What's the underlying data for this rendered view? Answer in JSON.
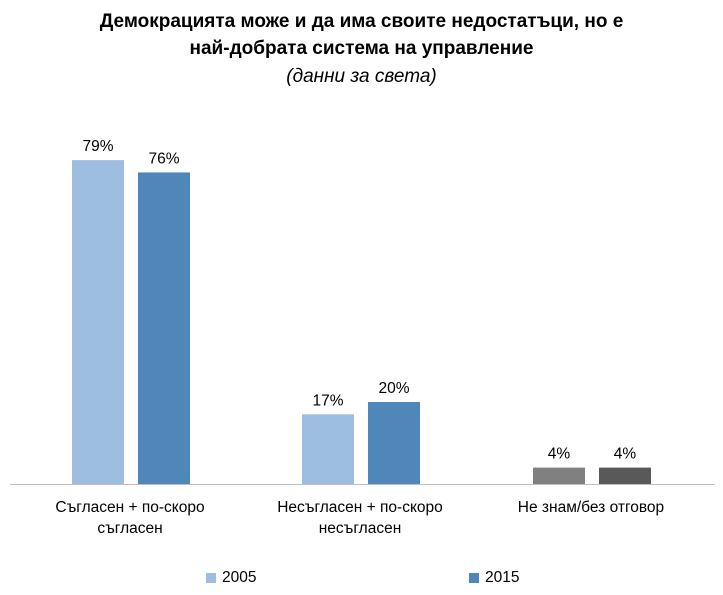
{
  "header": {
    "title_line1": "Демокрацията може и да има своите недостатъци, но е",
    "title_line2": "най-добрата система на управление",
    "subtitle": "(данни за света)"
  },
  "colors": {
    "series_2005": "#9dbde1",
    "series_2015": "#4f87bb",
    "dont_know_2005": "#808080",
    "dont_know_2015": "#595959",
    "axis": "#bfbfbf"
  },
  "chart_data": {
    "type": "bar",
    "title": "Демокрацията може и да има своите недостатъци, но е най-добрата система на управление",
    "subtitle": "(данни за света)",
    "categories": [
      "Съгласен + по-скоро съгласен",
      "Несъгласен + по-скоро несъгласен",
      "Не знам/без отговор"
    ],
    "category_lines": [
      [
        "Съгласен + по-скоро",
        "съгласен"
      ],
      [
        "Несъгласен + по-скоро",
        "несъгласен"
      ],
      [
        "Не знам/без отговор"
      ]
    ],
    "series": [
      {
        "name": "2005",
        "values": [
          79,
          17,
          4
        ],
        "labels": [
          "79%",
          "17%",
          "4%"
        ]
      },
      {
        "name": "2015",
        "values": [
          76,
          20,
          4
        ],
        "labels": [
          "76%",
          "20%",
          "4%"
        ]
      }
    ],
    "unit": "%",
    "ylim": [
      0,
      100
    ],
    "grid": false,
    "legend_position": "bottom"
  }
}
